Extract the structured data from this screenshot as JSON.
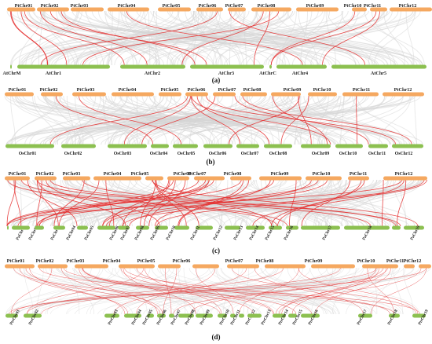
{
  "panels": [
    {
      "id": "a",
      "label": "(a)",
      "top_chromosomes": [
        "PtChr01",
        "PtChr02",
        "PtChr03",
        "PtChr04",
        "PtChr05",
        "PtChr06",
        "PtChr07",
        "PtChr08",
        "PtChr09",
        "PtChr10",
        "PtChr11",
        "PtChr12"
      ],
      "bottom_chromosomes": [
        "AtChrM",
        "AtChr1",
        "AtChr2",
        "AtChr3",
        "AtChrC",
        "AtChr4",
        "AtChr5"
      ]
    },
    {
      "id": "b",
      "label": "(b)",
      "top_chromosomes": [
        "PtChr01",
        "PtChr02",
        "PtChr03",
        "PtChr04",
        "PtChr05",
        "PtChr06",
        "PtChr07",
        "PtChr08",
        "PtChr09",
        "PtChr10",
        "PtChr11",
        "PtChr12"
      ],
      "bottom_chromosomes": [
        "OsChr01",
        "OsChr02",
        "OsChr03",
        "OsChr04",
        "OsChr05",
        "OsChr06",
        "OsChr07",
        "OsChr08",
        "OsChr09",
        "OsChr10",
        "OsChr11",
        "OsChr12"
      ]
    },
    {
      "id": "c",
      "label": "(c)",
      "top_chromosomes": [
        "PtChr01",
        "PtChr02",
        "PtChr03",
        "PtChr04",
        "PtChr05",
        "PtChr06",
        "PtChr07",
        "PtChr08",
        "PtChr09",
        "PtChr10",
        "PtChr11",
        "PtChr12"
      ],
      "bottom_chromosomes": [
        "PaChr01",
        "PaChr02",
        "PaChr03",
        "PaChr04",
        "PaChr05",
        "PaChr06",
        "PaChr07",
        "PaChr08",
        "PaChr09",
        "PaChr10",
        "PaChr11",
        "PaChr12",
        "PaChr13",
        "PaChr14",
        "PaChr15",
        "PaChr16",
        "PaChr17",
        "PaChr18",
        "PaChr19"
      ]
    },
    {
      "id": "d",
      "label": "(d)",
      "top_chromosomes": [
        "PtChr01",
        "PtChr02",
        "PtChr03",
        "PtChr04",
        "PtChr05",
        "PtChr06",
        "PtChr07",
        "PtChr08",
        "PtChr09",
        "PtChr10",
        "PtChr11",
        "PtChr12"
      ],
      "bottom_chromosomes": [
        "PtrChr01",
        "PtrChr02",
        "PtrChr03",
        "PtrChr04",
        "PtrChr05",
        "PtrChr06",
        "PtrChr07",
        "PtrChr08",
        "PtrChr09",
        "PtrChr10",
        "PtrChr11",
        "PtrChr12",
        "PtrChr13",
        "PtrChr14",
        "PtrChr15",
        "PtrChr16",
        "PtrChr17",
        "PtrChr18",
        "PtrChr19"
      ]
    }
  ],
  "colors": {
    "top_chromosome": "#F5A860",
    "bottom_chromosome": "#8CC050",
    "background_links": "#d6d6d6",
    "highlight_links": "#e63232"
  }
}
